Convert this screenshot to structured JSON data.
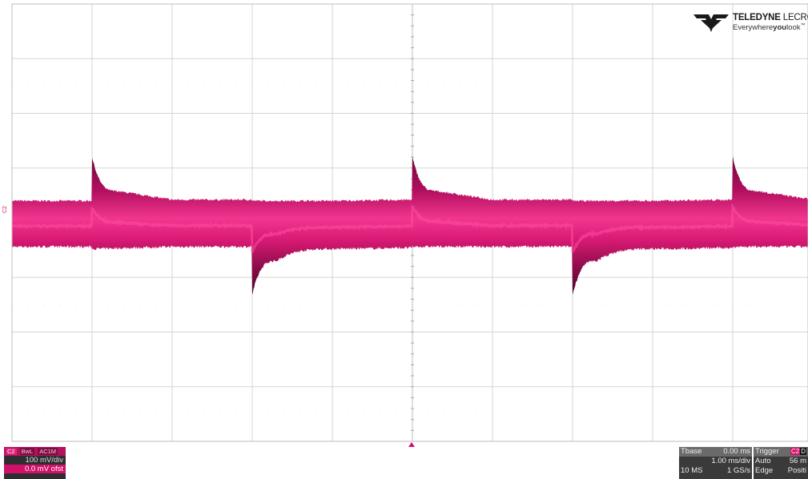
{
  "logo": {
    "brand_bold": "TELEDYNE",
    "brand_rest": "LECROY",
    "tag_a": "Everywhere",
    "tag_b": "you",
    "tag_c": "look",
    "tm": "™"
  },
  "channel": {
    "trace_label": "C2",
    "name": "C2",
    "flags": [
      "BwL",
      "AC1M"
    ],
    "vdiv": "100 mV/div",
    "offset": "0.0 mV ofst",
    "color": "#d0106a"
  },
  "timebase": {
    "title": "Tbase",
    "delay": "0.00 ms",
    "tdiv": "1.00 ms/div",
    "samples": "10 MS",
    "rate": "1 GS/s"
  },
  "trigger": {
    "title": "Trigger",
    "source": "C2",
    "coupling": "D",
    "mode": "Auto",
    "level": "56 m",
    "type": "Edge",
    "slope": "Positi"
  },
  "chart_data": {
    "type": "line",
    "title": "",
    "xlabel": "",
    "ylabel": "",
    "x_divisions": 10,
    "y_divisions": 8,
    "time_per_div_ms": 1.0,
    "volts_per_div_mV": 100,
    "xlim_ms": [
      -5,
      5
    ],
    "grid": true,
    "series": [
      {
        "band_upper_mV_at_x": [
          [
            -5.0,
            40
          ],
          [
            -4.0,
            40
          ],
          [
            -4.0,
            120
          ],
          [
            -3.7,
            58
          ],
          [
            -3.0,
            42
          ],
          [
            -3.0,
            42
          ],
          [
            -2.0,
            42
          ],
          [
            -2.0,
            40
          ],
          [
            -1.0,
            40
          ],
          [
            0.0,
            42
          ],
          [
            0.0,
            120
          ],
          [
            0.3,
            58
          ],
          [
            1.0,
            42
          ],
          [
            1.0,
            42
          ],
          [
            2.0,
            42
          ],
          [
            2.0,
            40
          ],
          [
            3.0,
            40
          ],
          [
            4.0,
            42
          ],
          [
            4.0,
            120
          ],
          [
            4.3,
            58
          ],
          [
            5.0,
            42
          ]
        ],
        "band_lower_mV_at_x": [
          [
            -5.0,
            -44
          ],
          [
            -4.0,
            -44
          ],
          [
            -4.0,
            -48
          ],
          [
            -3.0,
            -44
          ],
          [
            -2.0,
            -44
          ],
          [
            -2.0,
            -132
          ],
          [
            -1.7,
            -70
          ],
          [
            -1.0,
            -48
          ],
          [
            0.0,
            -46
          ],
          [
            0.0,
            -44
          ],
          [
            1.0,
            -44
          ],
          [
            2.0,
            -44
          ],
          [
            2.0,
            -132
          ],
          [
            2.3,
            -70
          ],
          [
            3.0,
            -48
          ],
          [
            4.0,
            -46
          ],
          [
            4.0,
            -44
          ],
          [
            5.0,
            -44
          ]
        ]
      }
    ]
  }
}
